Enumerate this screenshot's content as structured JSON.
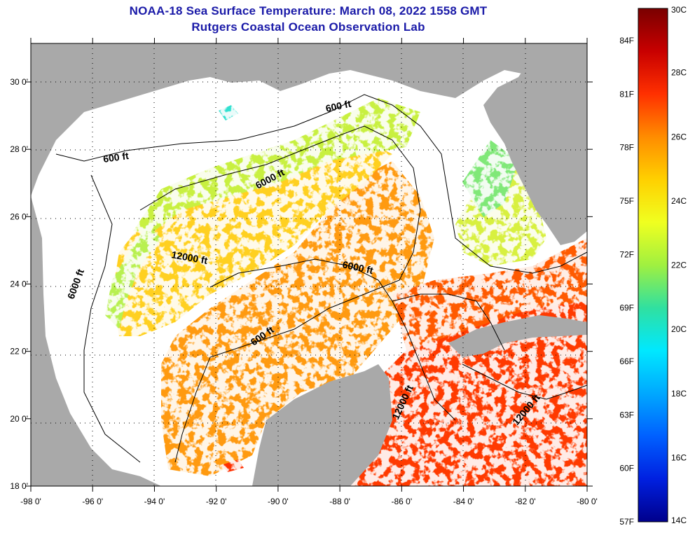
{
  "title": "NOAA-18 Sea Surface Temperature:  March 08, 2022 1558 GMT",
  "subtitle": "Rutgers Coastal Ocean Observation Lab",
  "map": {
    "lon_range": [
      -98,
      -80
    ],
    "lat_range": [
      18,
      31
    ],
    "lon_ticks": [
      "-98 0'",
      "-96 0'",
      "-94 0'",
      "-92 0'",
      "-90 0'",
      "-88 0'",
      "-86 0'",
      "-84 0'",
      "-82 0'",
      "-80 0'"
    ],
    "lat_ticks": [
      "30 0'",
      "28 0'",
      "26 0'",
      "24 0'",
      "22 0'",
      "20 0'",
      "18 0'"
    ],
    "land_color": "#a9a9a9",
    "cloud_color": "#ffffff",
    "contour_labels": [
      "600 ft",
      "600 ft",
      "6000 ft",
      "12000 ft",
      "6000 ft",
      "6000 ft",
      "600 ft",
      "12000 ft",
      "12000 ft"
    ]
  },
  "colorbar": {
    "celsius": [
      "30C",
      "28C",
      "26C",
      "24C",
      "22C",
      "20C",
      "18C",
      "16C",
      "14C"
    ],
    "fahrenheit": [
      "84F",
      "81F",
      "78F",
      "75F",
      "72F",
      "69F",
      "66F",
      "63F",
      "60F",
      "57F"
    ],
    "stops": [
      "#7a0000",
      "#c80000",
      "#ff3000",
      "#ff8c00",
      "#ffd000",
      "#f0ff20",
      "#a0f040",
      "#30e0a0",
      "#00e8ff",
      "#00a8ff",
      "#0060ff",
      "#0020e0",
      "#00008c"
    ]
  }
}
